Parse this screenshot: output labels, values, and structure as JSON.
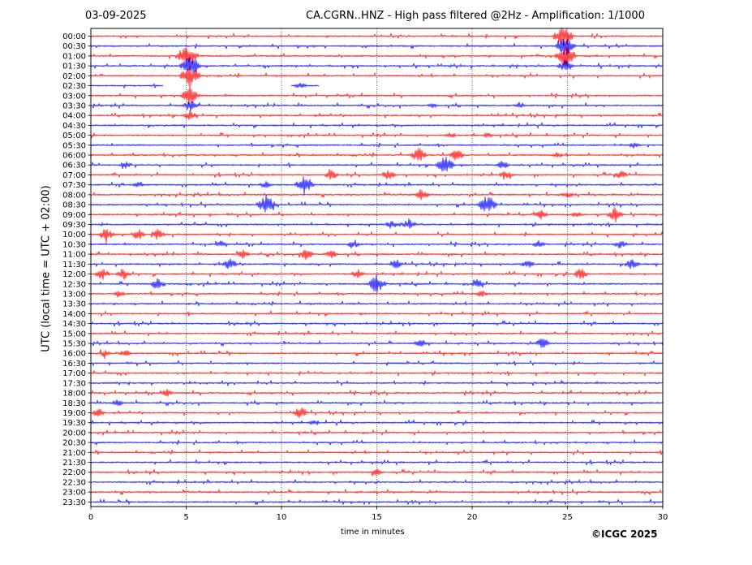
{
  "header": {
    "date": "03-09-2025",
    "title": "CA.CGRN..HNZ - High pass filtered @2Hz - Amplification: 1/1000"
  },
  "footer": {
    "copyright": "©ICGC 2025"
  },
  "chart_data": {
    "type": "line",
    "title": "CA.CGRN..HNZ - High pass filtered @2Hz - Amplification: 1/1000",
    "xlabel": "time in minutes",
    "ylabel": "UTC (local time = UTC + 02:00)",
    "xlim": [
      0,
      30
    ],
    "x_ticks": [
      0,
      5,
      10,
      15,
      20,
      25,
      30
    ],
    "vertical_gridlines": [
      5,
      10,
      15,
      20,
      25
    ],
    "y_ticks": [
      "00:00",
      "00:30",
      "01:00",
      "01:30",
      "02:00",
      "02:30",
      "03:00",
      "03:30",
      "04:00",
      "04:30",
      "05:00",
      "05:30",
      "06:00",
      "06:30",
      "07:00",
      "07:30",
      "08:00",
      "08:30",
      "09:00",
      "09:30",
      "10:00",
      "10:30",
      "11:00",
      "11:30",
      "12:00",
      "12:30",
      "13:00",
      "13:30",
      "14:00",
      "14:30",
      "15:00",
      "15:30",
      "16:00",
      "16:30",
      "17:00",
      "17:30",
      "18:00",
      "18:30",
      "19:00",
      "19:30",
      "20:00",
      "20:30",
      "21:00",
      "21:30",
      "22:00",
      "22:30",
      "23:00",
      "23:30"
    ],
    "trace_colors": [
      "#ff0000",
      "#0000ff"
    ],
    "data_gaps": [
      {
        "row": "02:30",
        "from": 3.8,
        "to": 10.5
      },
      {
        "row": "02:30",
        "from": 12.0,
        "to": 30
      }
    ],
    "events": [
      {
        "row": "00:00",
        "t": 24.8,
        "amp": 1.0
      },
      {
        "row": "00:30",
        "t": 24.9,
        "amp": 0.9
      },
      {
        "row": "01:00",
        "t": 5.1,
        "amp": 1.0
      },
      {
        "row": "01:00",
        "t": 24.9,
        "amp": 1.0
      },
      {
        "row": "01:30",
        "t": 5.2,
        "amp": 1.0
      },
      {
        "row": "01:30",
        "t": 24.9,
        "amp": 0.6
      },
      {
        "row": "02:00",
        "t": 5.2,
        "amp": 1.0
      },
      {
        "row": "02:30",
        "t": 5.2,
        "amp": 1.0
      },
      {
        "row": "02:30",
        "t": 11.0,
        "amp": 0.25
      },
      {
        "row": "03:00",
        "t": 5.2,
        "amp": 0.8
      },
      {
        "row": "03:30",
        "t": 5.2,
        "amp": 0.5
      },
      {
        "row": "03:30",
        "t": 17.9,
        "amp": 0.2
      },
      {
        "row": "03:30",
        "t": 22.5,
        "amp": 0.2
      },
      {
        "row": "04:00",
        "t": 5.2,
        "amp": 0.4
      },
      {
        "row": "05:00",
        "t": 18.9,
        "amp": 0.25
      },
      {
        "row": "05:00",
        "t": 20.8,
        "amp": 0.2
      },
      {
        "row": "05:30",
        "t": 28.5,
        "amp": 0.25
      },
      {
        "row": "06:00",
        "t": 17.2,
        "amp": 0.6
      },
      {
        "row": "06:00",
        "t": 19.2,
        "amp": 0.5
      },
      {
        "row": "06:00",
        "t": 24.5,
        "amp": 0.2
      },
      {
        "row": "06:30",
        "t": 1.8,
        "amp": 0.3
      },
      {
        "row": "06:30",
        "t": 18.6,
        "amp": 0.8
      },
      {
        "row": "06:30",
        "t": 21.6,
        "amp": 0.4
      },
      {
        "row": "07:00",
        "t": 12.6,
        "amp": 0.4
      },
      {
        "row": "07:00",
        "t": 15.6,
        "amp": 0.5
      },
      {
        "row": "07:00",
        "t": 21.8,
        "amp": 0.4
      },
      {
        "row": "07:00",
        "t": 27.8,
        "amp": 0.4
      },
      {
        "row": "07:30",
        "t": 11.2,
        "amp": 0.9
      },
      {
        "row": "07:30",
        "t": 9.2,
        "amp": 0.3
      },
      {
        "row": "07:30",
        "t": 2.5,
        "amp": 0.2
      },
      {
        "row": "08:00",
        "t": 17.4,
        "amp": 0.5
      },
      {
        "row": "08:00",
        "t": 25.0,
        "amp": 0.3
      },
      {
        "row": "08:30",
        "t": 9.2,
        "amp": 0.9
      },
      {
        "row": "08:30",
        "t": 20.8,
        "amp": 0.9
      },
      {
        "row": "09:00",
        "t": 23.6,
        "amp": 0.4
      },
      {
        "row": "09:00",
        "t": 25.5,
        "amp": 0.3
      },
      {
        "row": "09:00",
        "t": 27.5,
        "amp": 0.6
      },
      {
        "row": "09:30",
        "t": 15.8,
        "amp": 0.4
      },
      {
        "row": "09:30",
        "t": 16.7,
        "amp": 0.5
      },
      {
        "row": "10:00",
        "t": 0.8,
        "amp": 0.6
      },
      {
        "row": "10:00",
        "t": 2.5,
        "amp": 0.5
      },
      {
        "row": "10:00",
        "t": 3.5,
        "amp": 0.5
      },
      {
        "row": "10:30",
        "t": 6.8,
        "amp": 0.3
      },
      {
        "row": "10:30",
        "t": 13.8,
        "amp": 0.3
      },
      {
        "row": "10:30",
        "t": 23.5,
        "amp": 0.3
      },
      {
        "row": "10:30",
        "t": 27.8,
        "amp": 0.4
      },
      {
        "row": "11:00",
        "t": 8.0,
        "amp": 0.4
      },
      {
        "row": "11:00",
        "t": 11.3,
        "amp": 0.5
      },
      {
        "row": "11:00",
        "t": 12.6,
        "amp": 0.4
      },
      {
        "row": "11:30",
        "t": 7.3,
        "amp": 0.5
      },
      {
        "row": "11:30",
        "t": 16.0,
        "amp": 0.4
      },
      {
        "row": "11:30",
        "t": 22.9,
        "amp": 0.4
      },
      {
        "row": "11:30",
        "t": 28.4,
        "amp": 0.5
      },
      {
        "row": "12:00",
        "t": 0.6,
        "amp": 0.5
      },
      {
        "row": "12:00",
        "t": 1.7,
        "amp": 0.5
      },
      {
        "row": "12:00",
        "t": 14.0,
        "amp": 0.4
      },
      {
        "row": "12:00",
        "t": 25.7,
        "amp": 0.5
      },
      {
        "row": "12:30",
        "t": 3.5,
        "amp": 0.5
      },
      {
        "row": "12:30",
        "t": 15.0,
        "amp": 0.8
      },
      {
        "row": "12:30",
        "t": 20.3,
        "amp": 0.4
      },
      {
        "row": "13:00",
        "t": 1.5,
        "amp": 0.3
      },
      {
        "row": "13:00",
        "t": 20.5,
        "amp": 0.3
      },
      {
        "row": "15:30",
        "t": 17.3,
        "amp": 0.4
      },
      {
        "row": "15:30",
        "t": 23.7,
        "amp": 0.5
      },
      {
        "row": "16:00",
        "t": 0.7,
        "amp": 0.3
      },
      {
        "row": "16:00",
        "t": 1.8,
        "amp": 0.3
      },
      {
        "row": "18:00",
        "t": 4.0,
        "amp": 0.3
      },
      {
        "row": "18:30",
        "t": 1.4,
        "amp": 0.3
      },
      {
        "row": "19:00",
        "t": 0.4,
        "amp": 0.4
      },
      {
        "row": "19:00",
        "t": 11.0,
        "amp": 0.5
      },
      {
        "row": "19:30",
        "t": 11.7,
        "amp": 0.2
      },
      {
        "row": "22:00",
        "t": 15.0,
        "amp": 0.3
      }
    ]
  }
}
